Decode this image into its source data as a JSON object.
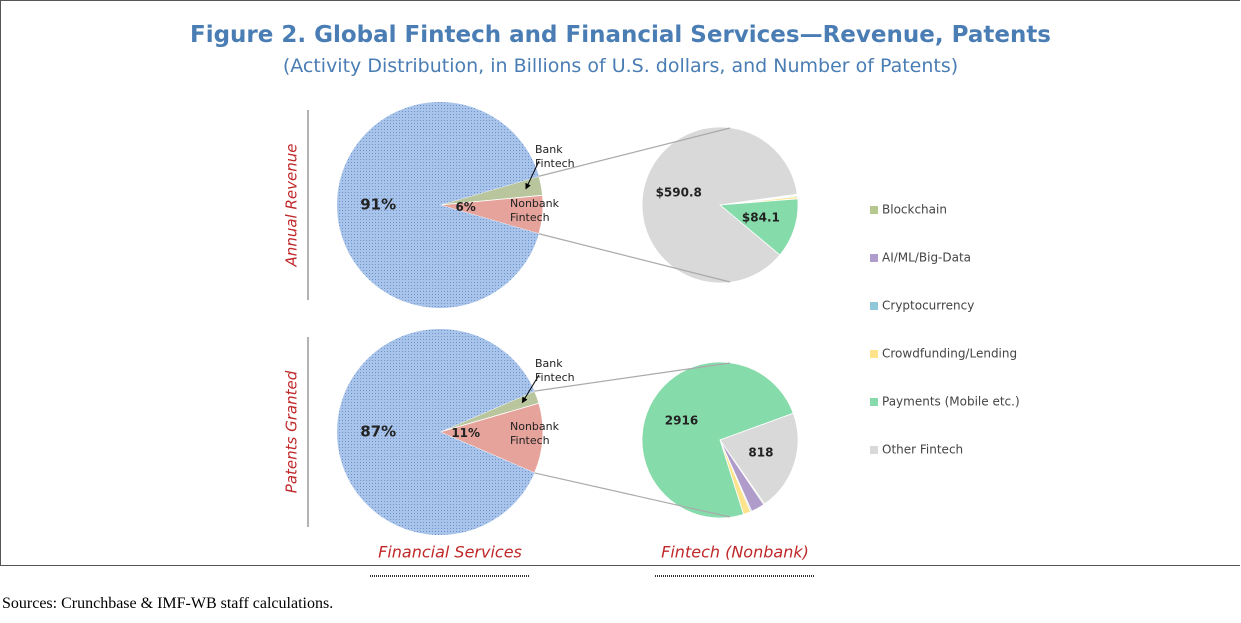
{
  "title": "Figure 2. Global Fintech and Financial Services—Revenue, Patents",
  "subtitle": "(Activity Distribution, in Billions of U.S. dollars, and Number of Patents)",
  "columns": [
    "Financial Services",
    "Fintech (Nonbank)"
  ],
  "source": "Sources: Crunchbase & IMF-WB staff calculations.",
  "chart_data": [
    {
      "type": "pie",
      "label": "Annual Revenue",
      "categories": [
        null,
        "Bank Fintech",
        "Nonbank Fintech"
      ],
      "values": [
        91,
        3,
        6
      ],
      "value_labels": [
        "91%",
        null,
        "6%"
      ],
      "colors": [
        "#9dbbe6",
        "#b9c59c",
        "#e6a39b"
      ]
    },
    {
      "type": "pie",
      "categories": [
        "Blockchain",
        "AI/ML/Big-Data",
        "Cryptocurrency",
        "Crowdfunding/Lending",
        "Payments (Mobile etc.)",
        "Other Fintech"
      ],
      "values": [
        1,
        1,
        1.5,
        3,
        84.1,
        590.8
      ],
      "value_labels": [
        null,
        null,
        null,
        null,
        "$84.1",
        "$590.8"
      ],
      "colors": [
        "#b5c98f",
        "#b09ccb",
        "#8fc8d8",
        "#fde48c",
        "#86dbab",
        "#d9d9d9"
      ]
    },
    {
      "type": "pie",
      "label": "Patents Granted",
      "categories": [
        null,
        "Bank Fintech",
        "Nonbank Fintech"
      ],
      "values": [
        87,
        2,
        11
      ],
      "value_labels": [
        "87%",
        null,
        "11%"
      ],
      "colors": [
        "#9dbbe6",
        "#b9c59c",
        "#e6a39b"
      ]
    },
    {
      "type": "pie",
      "categories": [
        "Blockchain",
        "AI/ML/Big-Data",
        "Cryptocurrency",
        "Crowdfunding/Lending",
        "Payments (Mobile etc.)",
        "Other Fintech"
      ],
      "values": [
        10,
        110,
        10,
        60,
        2916,
        818
      ],
      "value_labels": [
        null,
        null,
        null,
        null,
        "2916",
        "818"
      ],
      "colors": [
        "#b5c98f",
        "#b09ccb",
        "#8fc8d8",
        "#fde48c",
        "#86dbab",
        "#d9d9d9"
      ]
    }
  ]
}
